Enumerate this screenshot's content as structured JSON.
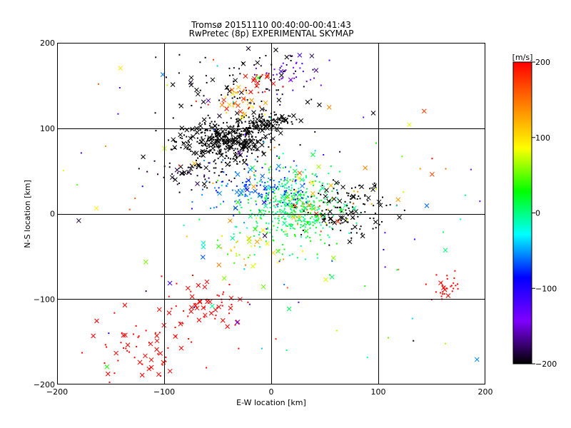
{
  "chart_data": {
    "type": "scatter",
    "title": "Tromsø 20151110 00:40:00-00:41:43",
    "subtitle": "RwPretec (8p) EXPERIMENTAL SKYMAP",
    "xlabel": "E-W location [km]",
    "ylabel": "N-S location [km]",
    "xlim": [
      -200,
      200
    ],
    "ylim": [
      -200,
      200
    ],
    "xticks": [
      -200,
      -100,
      0,
      100,
      200
    ],
    "yticks": [
      -200,
      -100,
      0,
      100,
      200
    ],
    "xtick_labels": [
      "−200",
      "−100",
      "0",
      "100",
      "200"
    ],
    "ytick_labels": [
      "−200",
      "−100",
      "0",
      "100",
      "200"
    ],
    "grid": true,
    "colorbar": {
      "unit": "[m/s]",
      "range": [
        -200,
        200
      ],
      "ticks": [
        -200,
        -100,
        0,
        100,
        200
      ],
      "tick_labels": [
        "−200",
        "−100",
        "0",
        "100",
        "200"
      ],
      "colormap": [
        "#000000",
        "#7f00ff",
        "#0000ff",
        "#00ffff",
        "#00ff00",
        "#ffff00",
        "#ff8000",
        "#ff0000"
      ]
    },
    "marker_types": [
      "dot",
      "x"
    ],
    "clusters": [
      {
        "x": -45,
        "y": 85,
        "sx": 22,
        "sy": 12,
        "v": -200,
        "v_spread": 0,
        "n": 420,
        "x_frac": 0.25
      },
      {
        "x": -5,
        "y": 108,
        "sx": 14,
        "sy": 6,
        "v": -200,
        "v_spread": 0,
        "n": 120,
        "x_frac": 0.2
      },
      {
        "x": -30,
        "y": 150,
        "sx": 35,
        "sy": 25,
        "v": -200,
        "v_spread": 10,
        "n": 90,
        "x_frac": 0.25
      },
      {
        "x": 15,
        "y": 165,
        "sx": 15,
        "sy": 12,
        "v": -150,
        "v_spread": 40,
        "n": 50,
        "x_frac": 0.1
      },
      {
        "x": -25,
        "y": 130,
        "sx": 12,
        "sy": 10,
        "v": 140,
        "v_spread": 60,
        "n": 40,
        "x_frac": 0.4
      },
      {
        "x": -10,
        "y": 155,
        "sx": 8,
        "sy": 6,
        "v": 200,
        "v_spread": 10,
        "n": 15,
        "x_frac": 0.5
      },
      {
        "x": 20,
        "y": 5,
        "sx": 22,
        "sy": 22,
        "v": 10,
        "v_spread": 25,
        "n": 420,
        "x_frac": 0.1
      },
      {
        "x": -10,
        "y": 30,
        "sx": 25,
        "sy": 15,
        "v": -70,
        "v_spread": 20,
        "n": 140,
        "x_frac": 0.15
      },
      {
        "x": 70,
        "y": 5,
        "sx": 20,
        "sy": 15,
        "v": -200,
        "v_spread": 0,
        "n": 130,
        "x_frac": 0.25
      },
      {
        "x": -70,
        "y": 45,
        "sx": 18,
        "sy": 10,
        "v": -200,
        "v_spread": 20,
        "n": 60,
        "x_frac": 0.25
      },
      {
        "x": -120,
        "y": -160,
        "sx": 25,
        "sy": 25,
        "v": 200,
        "v_spread": 0,
        "n": 70,
        "x_frac": 0.35
      },
      {
        "x": -65,
        "y": -105,
        "sx": 18,
        "sy": 15,
        "v": 200,
        "v_spread": 0,
        "n": 55,
        "x_frac": 0.45
      },
      {
        "x": 165,
        "y": -85,
        "sx": 10,
        "sy": 8,
        "v": 200,
        "v_spread": 0,
        "n": 30,
        "x_frac": 0.3
      },
      {
        "x": 40,
        "y": 15,
        "sx": 30,
        "sy": 20,
        "v": 130,
        "v_spread": 60,
        "n": 40,
        "x_frac": 0.35
      },
      {
        "x": -20,
        "y": -40,
        "sx": 20,
        "sy": 15,
        "v": 90,
        "v_spread": 60,
        "n": 40,
        "x_frac": 0.3
      },
      {
        "x": 0,
        "y": 0,
        "sx": 110,
        "sy": 110,
        "v": 0,
        "v_spread": 200,
        "n": 150,
        "x_frac": 0.25
      }
    ]
  }
}
